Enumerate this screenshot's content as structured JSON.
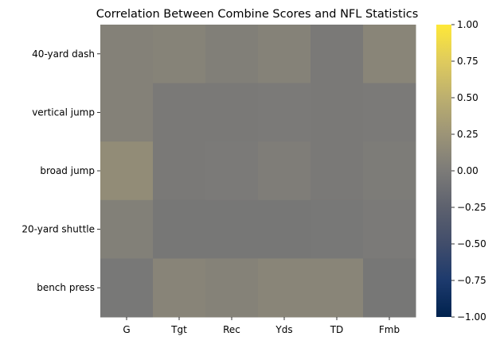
{
  "chart_data": {
    "type": "heatmap",
    "title": "Correlation Between Combine Scores and NFL Statistics",
    "rows": [
      "40-yard dash",
      "vertical jump",
      "broad jump",
      "20-yard shuttle",
      "bench press"
    ],
    "columns": [
      "G",
      "Tgt",
      "Rec",
      "Yds",
      "TD",
      "Fmb"
    ],
    "values": [
      [
        0.06,
        0.08,
        0.04,
        0.07,
        -0.02,
        0.1
      ],
      [
        0.06,
        -0.02,
        -0.02,
        -0.01,
        -0.02,
        -0.01
      ],
      [
        0.17,
        -0.02,
        -0.01,
        0.02,
        -0.02,
        0.01
      ],
      [
        0.05,
        -0.04,
        -0.04,
        -0.04,
        -0.03,
        -0.01
      ],
      [
        -0.03,
        0.09,
        0.07,
        0.1,
        0.1,
        -0.04
      ]
    ],
    "colorbar": {
      "colormap": "cividis",
      "vmin": -1.0,
      "vmax": 1.0,
      "ticks": [
        1.0,
        0.75,
        0.5,
        0.25,
        0.0,
        -0.25,
        -0.5,
        -0.75,
        -1.0
      ],
      "tick_labels": [
        "1.00",
        "0.75",
        "0.50",
        "0.25",
        "0.00",
        "−0.25",
        "−0.50",
        "−0.75",
        "−1.00"
      ]
    }
  }
}
